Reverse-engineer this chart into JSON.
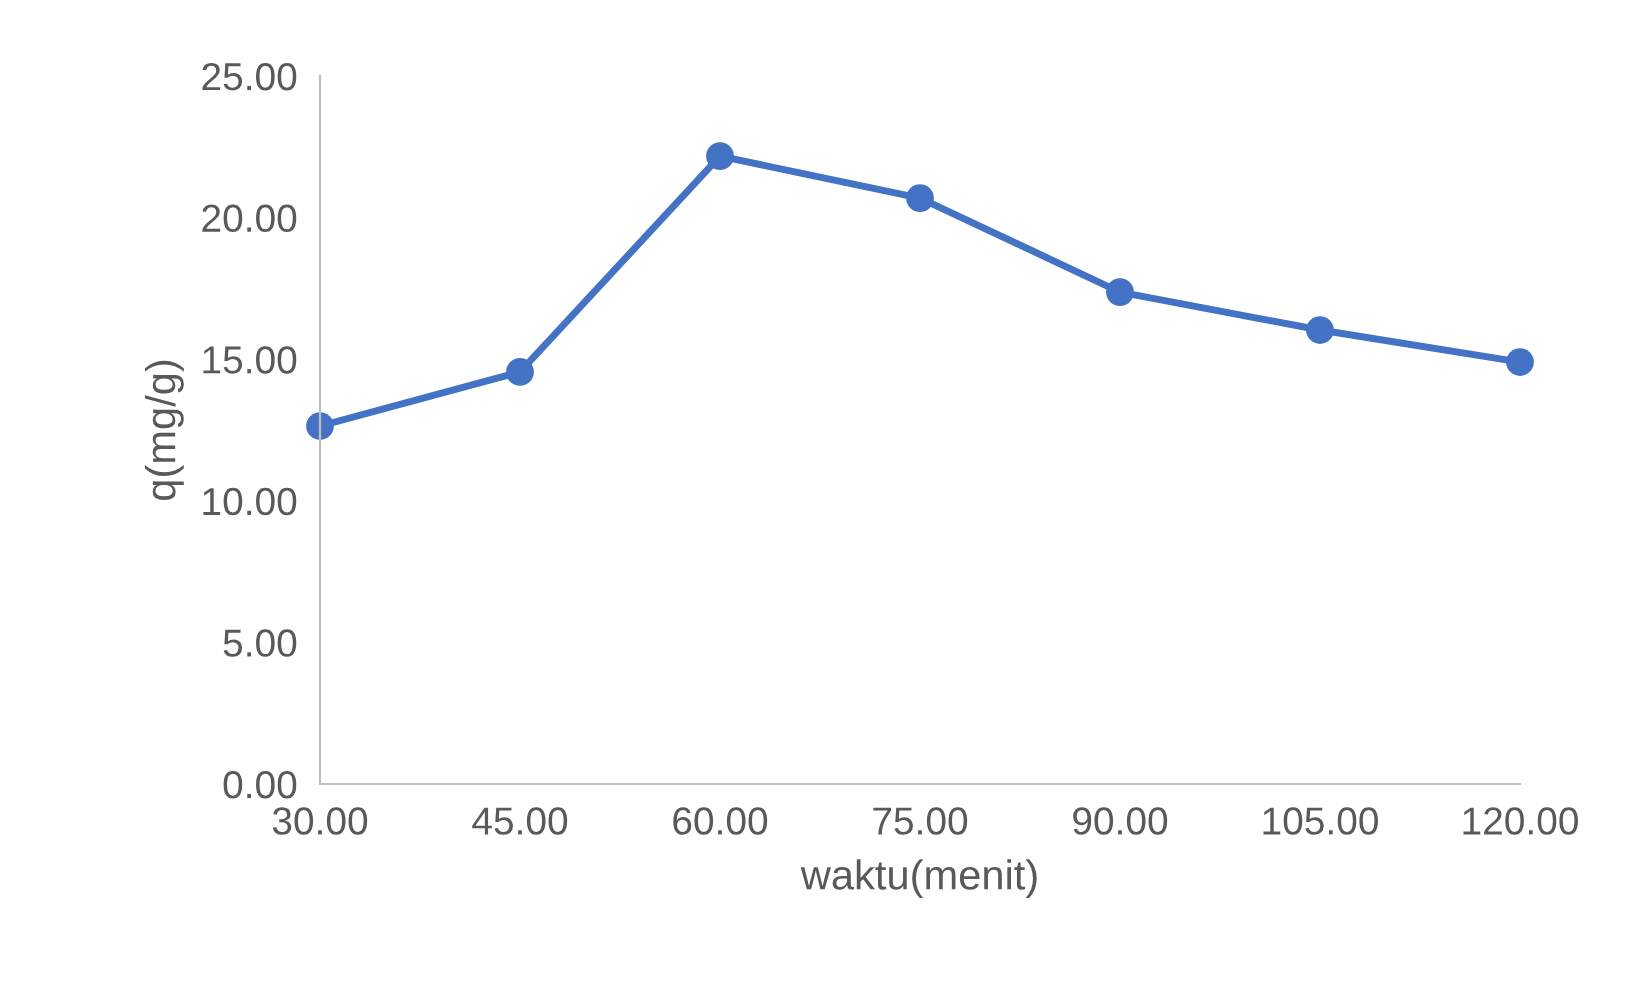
{
  "chart_data": {
    "type": "line",
    "xlabel": "waktu(menit)",
    "ylabel": "q(mg/g)",
    "x": [
      30,
      45,
      60,
      75,
      90,
      105,
      120
    ],
    "series": [
      {
        "color": "#4472c4",
        "values": [
          12.64,
          14.55,
          22.17,
          20.69,
          17.37,
          16.03,
          14.9
        ]
      }
    ],
    "xlim": [
      30,
      120
    ],
    "xticks": [
      {
        "value": 30,
        "label": "30.00"
      },
      {
        "value": 45,
        "label": "45.00"
      },
      {
        "value": 60,
        "label": "60.00"
      },
      {
        "value": 75,
        "label": "75.00"
      },
      {
        "value": 90,
        "label": "90.00"
      },
      {
        "value": 105,
        "label": "105.00"
      },
      {
        "value": 120,
        "label": "120.00"
      }
    ],
    "ylim": [
      0,
      25
    ],
    "yticks": [
      {
        "value": 0,
        "label": "0.00"
      },
      {
        "value": 5,
        "label": "5.00"
      },
      {
        "value": 10,
        "label": "10.00"
      },
      {
        "value": 15,
        "label": "15.00"
      },
      {
        "value": 20,
        "label": "20.00"
      },
      {
        "value": 25,
        "label": "25.00"
      }
    ],
    "grid": false,
    "legend": false,
    "marker": "circle",
    "line_style": "solid"
  }
}
